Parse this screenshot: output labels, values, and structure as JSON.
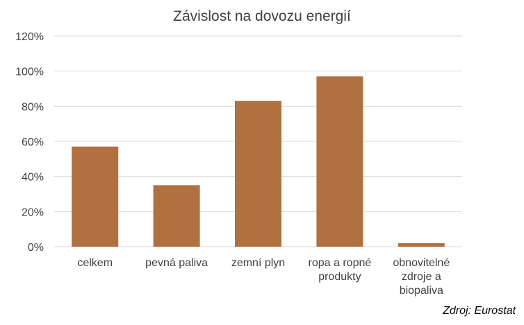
{
  "chart_data": {
    "type": "bar",
    "title": "Závislost na dovozu energií",
    "categories": [
      [
        "celkem"
      ],
      [
        "pevná paliva"
      ],
      [
        "zemní plyn"
      ],
      [
        "ropa a ropné",
        "produkty"
      ],
      [
        "obnovitelné",
        "zdroje a",
        "biopaliva"
      ]
    ],
    "values": [
      57,
      35,
      83,
      97,
      2
    ],
    "y_unit": "%",
    "ylim": [
      0,
      120
    ],
    "yticks": [
      0,
      20,
      40,
      60,
      80,
      100,
      120
    ],
    "ytick_labels": [
      "0%",
      "20%",
      "40%",
      "60%",
      "80%",
      "100%",
      "120%"
    ],
    "grid": true,
    "bar_color": "#B07040",
    "grid_color": "#D9D9D9"
  },
  "source": "Zdroj: Eurostat"
}
